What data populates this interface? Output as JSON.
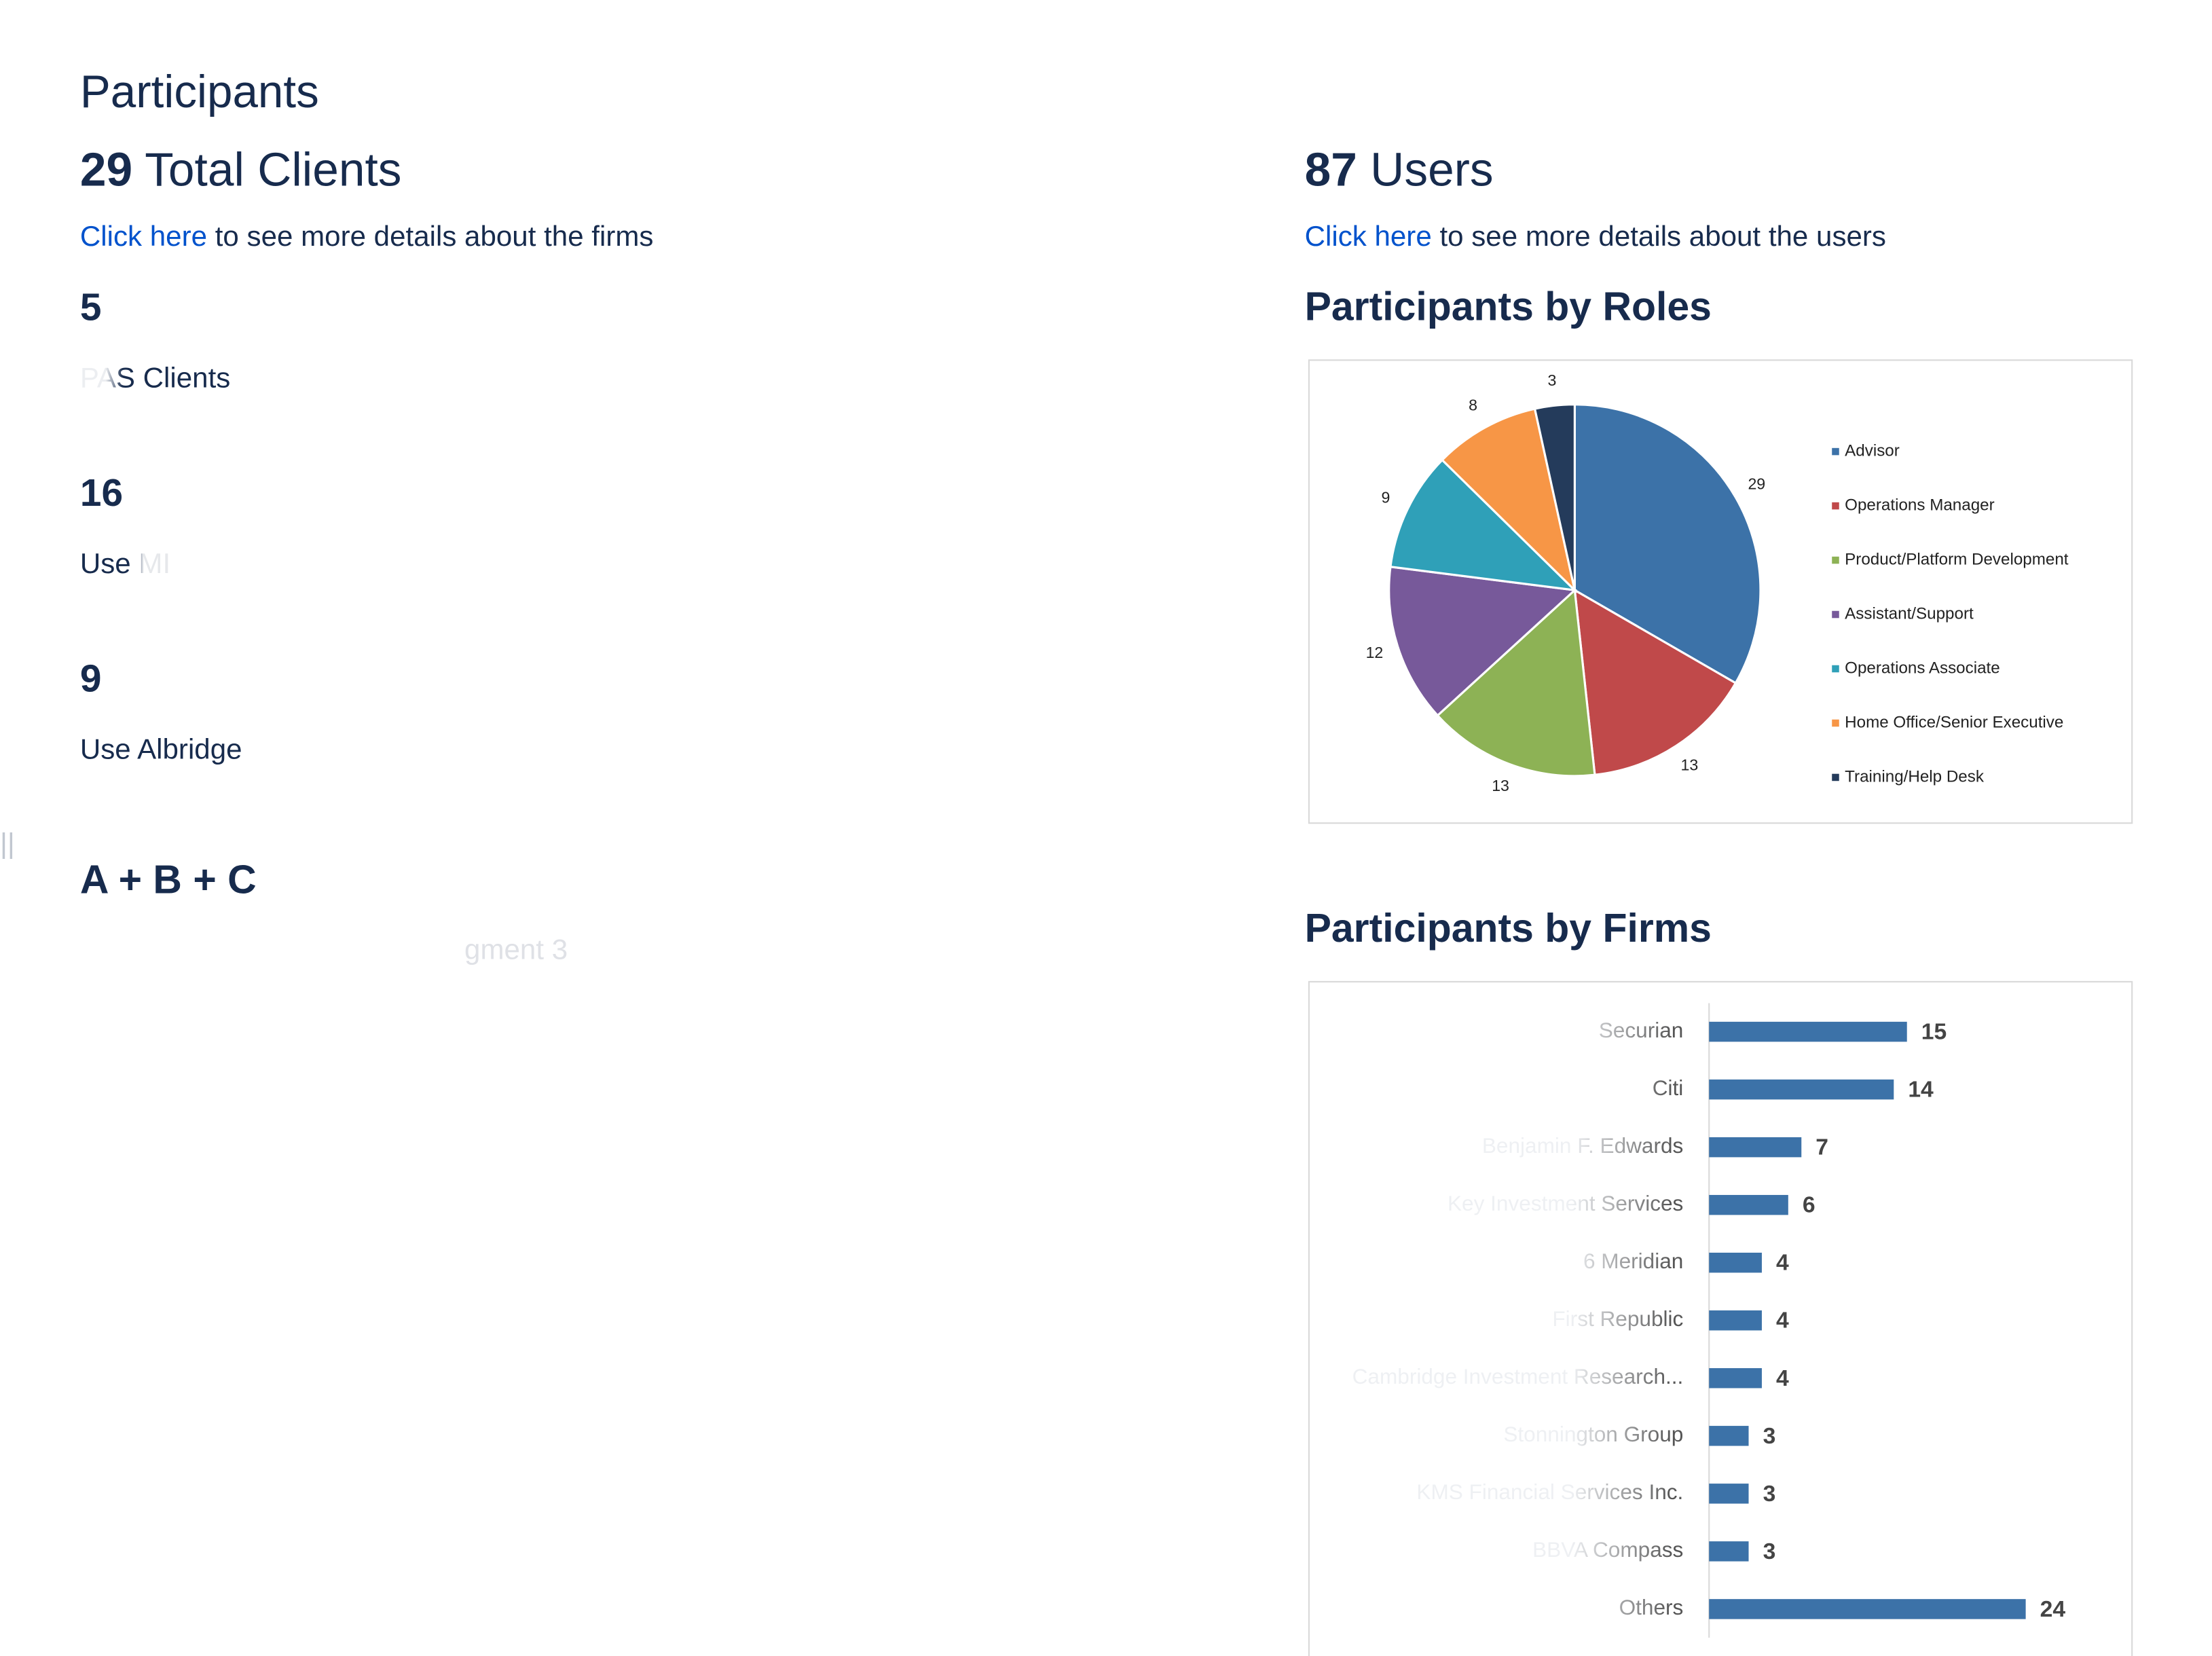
{
  "header": {
    "title": "Participants",
    "total_clients": 29,
    "total_clients_label": "Total Clients",
    "clients_link": "Click here",
    "clients_link_rest": "to see more details about the firms",
    "total_users": 87,
    "total_users_label": "Users",
    "users_link": "Click here",
    "users_link_rest": "to see more details about the users"
  },
  "stats": [
    {
      "value": 5,
      "label": "PAS Clients"
    },
    {
      "value": 16,
      "label": "Use MI"
    },
    {
      "value": 9,
      "label": "Use Albridge"
    }
  ],
  "side_marker": "||",
  "formula": "A + B + C",
  "formula_note": "gment 3",
  "chart_data": [
    {
      "type": "pie",
      "title": "Participants by Roles",
      "categories": [
        "Advisor",
        "Operations Manager",
        "Product/Platform Development",
        "Assistant/Support",
        "Operations Associate",
        "Home Office/Senior Executive",
        "Training/Help Desk"
      ],
      "values": [
        29,
        13,
        13,
        12,
        9,
        8,
        3
      ],
      "colors": [
        "#3c72a8",
        "#c0494a",
        "#8db255",
        "#77599a",
        "#2fa0b8",
        "#f79646",
        "#243b5b"
      ],
      "legend": "right"
    },
    {
      "type": "barh",
      "title": "Participants by Firms",
      "categories": [
        "Securian",
        "Citi",
        "Benjamin F. Edwards",
        "Key Investment Services",
        "6 Meridian",
        "First Republic",
        "Cambridge Investment Research...",
        "Stonnington Group",
        "KMS Financial Services Inc.",
        "BBVA Compass",
        "Others"
      ],
      "values": [
        15,
        14,
        7,
        6,
        4,
        4,
        4,
        3,
        3,
        3,
        24
      ],
      "color": "#3c72a8",
      "xlim": [
        0,
        30
      ]
    }
  ]
}
